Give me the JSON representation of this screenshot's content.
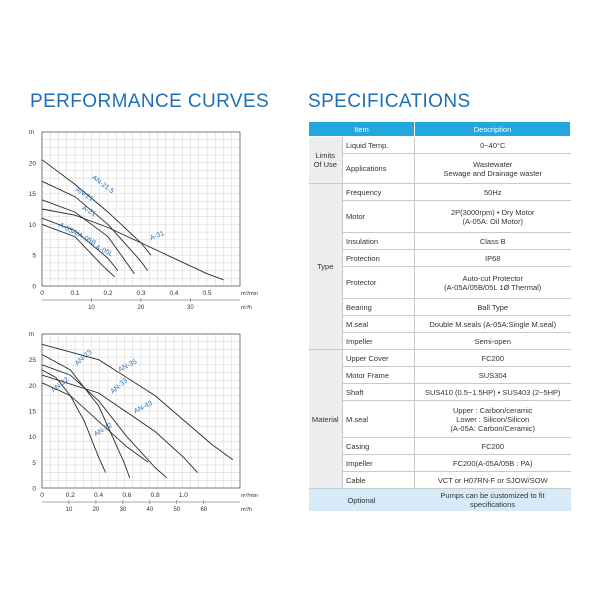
{
  "left_title": "PERFORMANCE CURVES",
  "right_title": "SPECIFICATIONS",
  "chart_data": [
    {
      "type": "line",
      "ylabel": "m",
      "xlabel": "m³/min",
      "xlabel2": "m³/h",
      "xlim": [
        0,
        0.6
      ],
      "ylim": [
        0,
        25
      ],
      "xticks": [
        "0",
        "0.1",
        "0.2",
        "0.3",
        "0.4",
        "0.5"
      ],
      "xtick_values": [
        0,
        0.1,
        0.2,
        0.3,
        0.4,
        0.5
      ],
      "x2ticks": [
        "10",
        "20",
        "30"
      ],
      "yticks": [
        "0",
        "5",
        "10",
        "15",
        "20"
      ],
      "ytick_values": [
        0,
        5,
        10,
        15,
        20
      ],
      "series": [
        {
          "name": "AN-21.5",
          "x": [
            0,
            0.1,
            0.2,
            0.3,
            0.33
          ],
          "y": [
            20.5,
            16.5,
            12,
            7,
            5
          ],
          "label_at": [
            0.15,
            17.5
          ],
          "label_angle": 37
        },
        {
          "name": "AN-21",
          "x": [
            0,
            0.1,
            0.2,
            0.3,
            0.32
          ],
          "y": [
            17,
            14.5,
            10,
            4,
            2.5
          ],
          "label_at": [
            0.1,
            15.5
          ],
          "label_angle": 33
        },
        {
          "name": "A-21",
          "x": [
            0,
            0.1,
            0.2,
            0.28
          ],
          "y": [
            14,
            12,
            8,
            2
          ],
          "label_at": [
            0.12,
            12.5
          ],
          "label_angle": 30
        },
        {
          "name": "A-31",
          "x": [
            0,
            0.1,
            0.2,
            0.3,
            0.4,
            0.5,
            0.55
          ],
          "y": [
            12.5,
            11.5,
            9.5,
            7,
            4.5,
            2,
            1
          ],
          "label_at": [
            0.33,
            7.4
          ],
          "label_angle": -22
        },
        {
          "name": "A-05A/A-05B",
          "x": [
            0,
            0.1,
            0.2,
            0.23
          ],
          "y": [
            11,
            9,
            4.5,
            2.5
          ],
          "label_at": [
            0.05,
            9.7
          ],
          "label_angle": 28
        },
        {
          "name": "A-05L",
          "x": [
            0,
            0.1,
            0.18,
            0.22
          ],
          "y": [
            10,
            8,
            3.5,
            1.5
          ],
          "label_at": [
            0.16,
            6.1
          ],
          "label_angle": 26
        }
      ]
    },
    {
      "type": "line",
      "ylabel": "m",
      "xlabel": "m³/min",
      "xlabel2": "m³/h",
      "xlim": [
        0,
        1.4
      ],
      "ylim": [
        0,
        30
      ],
      "xticks": [
        "0",
        "0.2",
        "0.4",
        "0.6",
        "0.8",
        "1.0"
      ],
      "xtick_values": [
        0,
        0.2,
        0.4,
        0.6,
        0.8,
        1.0
      ],
      "x2ticks": [
        "10",
        "20",
        "30",
        "40",
        "50",
        "60"
      ],
      "yticks": [
        "0",
        "5",
        "10",
        "15",
        "20",
        "25"
      ],
      "ytick_values": [
        0,
        5,
        10,
        15,
        20,
        25
      ],
      "series": [
        {
          "name": "AN-23",
          "x": [
            0,
            0.2,
            0.4,
            0.58,
            0.62
          ],
          "y": [
            26,
            23,
            16,
            5,
            2
          ],
          "label_at": [
            0.25,
            23.8
          ],
          "label_angle": -42
        },
        {
          "name": "AN-35",
          "x": [
            0,
            0.4,
            0.8,
            1.2,
            1.35
          ],
          "y": [
            28,
            25,
            18,
            8.5,
            5.5
          ],
          "label_at": [
            0.55,
            22.6
          ],
          "label_angle": -28
        },
        {
          "name": "AN-33",
          "x": [
            0,
            0.2,
            0.4,
            0.6,
            0.8,
            0.88
          ],
          "y": [
            24,
            22,
            17,
            10,
            4,
            2
          ],
          "label_at": [
            0.5,
            18.3
          ],
          "label_angle": -40
        },
        {
          "name": "AN-43",
          "x": [
            0,
            0.4,
            0.8,
            1.0,
            1.1
          ],
          "y": [
            22,
            18.5,
            11,
            6,
            3
          ],
          "label_at": [
            0.66,
            14.5
          ],
          "label_angle": -28
        },
        {
          "name": "AN-22",
          "x": [
            0,
            0.1,
            0.2,
            0.3,
            0.4,
            0.45
          ],
          "y": [
            23,
            21.5,
            18,
            13,
            6,
            3
          ],
          "label_at": [
            0.08,
            18.6
          ],
          "label_angle": -38
        },
        {
          "name": "AN-32",
          "x": [
            0,
            0.2,
            0.4,
            0.6,
            0.75
          ],
          "y": [
            20.5,
            18,
            13,
            8,
            5
          ],
          "label_at": [
            0.38,
            10
          ],
          "label_angle": -32
        }
      ]
    }
  ],
  "spec": {
    "header_item": "Item",
    "header_desc": "Description",
    "groups": {
      "limits": "Limits Of Use",
      "type": "Type",
      "material": "Material"
    },
    "rows": [
      {
        "item": "Liquid Temp.",
        "desc": "0~40°C"
      },
      {
        "item": "Applications",
        "desc": "Wastewater\nSewage  and  Drainage  waster"
      },
      {
        "item": "Frequency",
        "desc": "50Hz"
      },
      {
        "item": "Motor",
        "desc": "2P(3000rpm) • Dry Motor\n(A-05A: Oil Motor)"
      },
      {
        "item": "Insulation",
        "desc": "Class B"
      },
      {
        "item": "Protection",
        "desc": "IP68"
      },
      {
        "item": "Protector",
        "desc": "Auto-cut Protector\n(A-05A/05B/05L 1Ø Thermal)"
      },
      {
        "item": "Bearing",
        "desc": "Ball Type"
      },
      {
        "item": "M.seal",
        "desc": "Double M.seals (A-05A:Single M.seal)"
      },
      {
        "item": "Impeller",
        "desc": "Semi-open"
      },
      {
        "item": "Upper Cover",
        "desc": "FC200"
      },
      {
        "item": "Motor Frame",
        "desc": "SUS304"
      },
      {
        "item": "Shaft",
        "desc": "SUS410 (0.5~1.5HP) • SUS403 (2~5HP)"
      },
      {
        "item": "M.seal",
        "desc": "Upper : Carbon/ceramic\nLower : Silicon/Silicon\n(A-05A: Carbon/Ceramic)"
      },
      {
        "item": "Casing",
        "desc": "FC200"
      },
      {
        "item": "Impeller",
        "desc": "FC200(A-05A/05B : PA)"
      },
      {
        "item": "Cable",
        "desc": "VCT or H07RN-F or SJOW/SOW"
      }
    ],
    "optional_label": "Optional",
    "optional_desc": "Pumps can be customized to fit specifications"
  },
  "colors": {
    "accent": "#1f6fb7",
    "header_bg": "#22a7df",
    "curve": "#2b2b2b",
    "label": "#2e73b9",
    "grid": "#c8c8c8",
    "group_bg": "#eceef0",
    "footer_bg": "#d6eaf8"
  }
}
